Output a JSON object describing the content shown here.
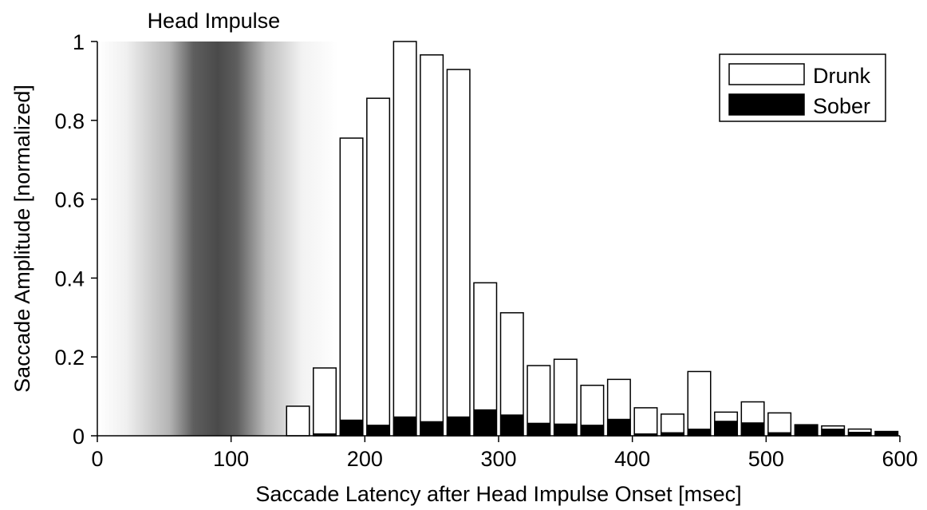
{
  "chart_data": {
    "type": "bar",
    "title": "",
    "xlabel": "Saccade Latency after Head Impulse Onset [msec]",
    "ylabel": "Saccade Amplitude [normalized]",
    "xlim": [
      0,
      600
    ],
    "ylim": [
      0,
      1
    ],
    "xticks": [
      0,
      100,
      200,
      300,
      400,
      500,
      600
    ],
    "yticks": [
      0,
      0.2,
      0.4,
      0.6,
      0.8,
      1
    ],
    "ytick_labels": [
      "0",
      "0.2",
      "0.4",
      "0.6",
      "0.8",
      "1"
    ],
    "grid": false,
    "legend_position": "top-right",
    "bar_width": 17,
    "x": [
      150,
      170,
      190,
      210,
      230,
      250,
      270,
      290,
      310,
      330,
      350,
      370,
      390,
      410,
      430,
      450,
      470,
      490,
      510,
      530,
      550,
      570,
      590
    ],
    "series": [
      {
        "name": "Drunk",
        "color": "#ffffff",
        "values": [
          0.075,
          0.172,
          0.755,
          0.856,
          1.0,
          0.966,
          0.929,
          0.388,
          0.312,
          0.178,
          0.194,
          0.128,
          0.143,
          0.071,
          0.055,
          0.163,
          0.06,
          0.086,
          0.058,
          0.028,
          0.025,
          0.017,
          0.011
        ]
      },
      {
        "name": "Sober",
        "color": "#000000",
        "values": [
          0,
          0.005,
          0.04,
          0.027,
          0.048,
          0.036,
          0.048,
          0.066,
          0.053,
          0.032,
          0.03,
          0.027,
          0.042,
          0.005,
          0.008,
          0.017,
          0.037,
          0.033,
          0.008,
          0.028,
          0.017,
          0.009,
          0.011
        ]
      }
    ],
    "annotation": {
      "text": "Head Impulse",
      "x_range": [
        0,
        180
      ],
      "center": 87
    }
  }
}
